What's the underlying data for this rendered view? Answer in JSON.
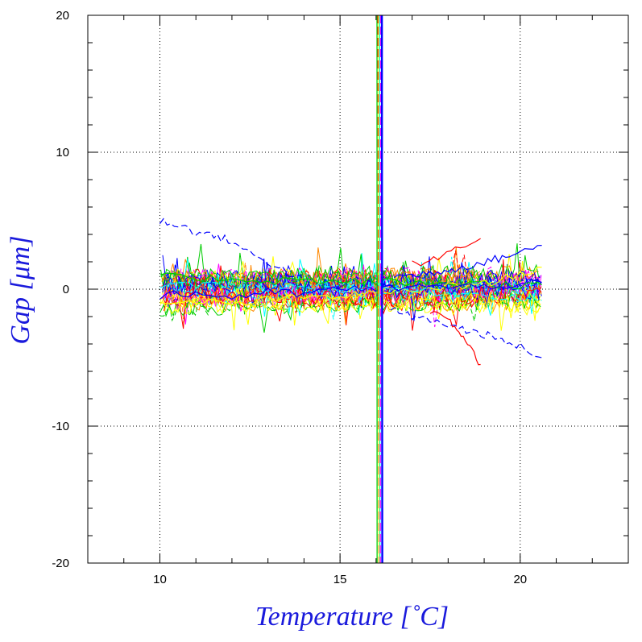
{
  "chart_data": {
    "type": "line",
    "title": "",
    "xlabel": "Temperature [˚C]",
    "ylabel": "Gap [μm]",
    "xlim": [
      8,
      23
    ],
    "ylim": [
      -20,
      20
    ],
    "x_ticks": [
      10,
      15,
      20
    ],
    "y_ticks": [
      -20,
      -10,
      0,
      10,
      20
    ],
    "x_ticks_labels": [
      "10",
      "15",
      "20"
    ],
    "y_ticks_labels": [
      "-20",
      "-10",
      "0",
      "10",
      "20"
    ],
    "x_minor_step": 1,
    "y_minor_step": 2,
    "grid": true,
    "grid_style": "dotted",
    "series_count": 48,
    "series_colors": [
      "#0000ff",
      "#ff0000",
      "#00cc00",
      "#ffff00",
      "#00ffff",
      "#ff00ff",
      "#ff8800"
    ],
    "series": [
      {
        "color": "#0000ff",
        "style": "dashed",
        "x": [
          10.0,
          10.5,
          11.0,
          11.5,
          12.0,
          12.5,
          13.0,
          13.5,
          14.0
        ],
        "y": [
          5.0,
          4.7,
          4.2,
          3.9,
          3.5,
          2.6,
          2.0,
          1.3,
          0.6
        ]
      },
      {
        "color": "#0000ff",
        "style": "dashed",
        "x": [
          16.4,
          17.0,
          17.5,
          18.0,
          18.5,
          19.0,
          19.5,
          20.0,
          20.6
        ],
        "y": [
          -1.5,
          -2.0,
          -2.3,
          -2.6,
          -3.0,
          -3.3,
          -3.8,
          -4.2,
          -5.0
        ]
      },
      {
        "color": "#0000ff",
        "style": "solid",
        "x": [
          16.5,
          17.0,
          17.5,
          18.0,
          18.5,
          19.0,
          19.5,
          20.0,
          20.6
        ],
        "y": [
          0.9,
          1.0,
          1.2,
          1.4,
          1.7,
          2.0,
          2.3,
          2.7,
          3.2
        ]
      },
      {
        "color": "#ff0000",
        "style": "solid",
        "x": [
          17.5,
          18.0,
          18.3,
          18.6,
          18.9
        ],
        "y": [
          -1.5,
          -2.2,
          -3.0,
          -4.1,
          -5.5
        ]
      },
      {
        "color": "#ff0000",
        "style": "solid",
        "x": [
          17.0,
          17.6,
          18.2,
          18.9
        ],
        "y": [
          1.8,
          2.1,
          2.8,
          3.7
        ]
      },
      {
        "color": "#00cc00",
        "style": "solid",
        "x": [
          10.0,
          11.0,
          12.0,
          13.0,
          14.0,
          15.0,
          16.0,
          17.0,
          18.0,
          19.0,
          20.0,
          20.6
        ],
        "y": [
          0.9,
          0.8,
          0.8,
          0.6,
          0.7,
          0.5,
          0.6,
          0.4,
          0.5,
          0.4,
          0.3,
          0.3
        ]
      },
      {
        "color": "#ffff00",
        "style": "solid",
        "x": [
          10.0,
          11.0,
          12.0,
          13.0,
          14.0,
          15.0,
          16.0,
          17.0,
          18.0,
          19.0,
          20.0,
          20.6
        ],
        "y": [
          -1.2,
          -0.9,
          -1.1,
          -0.8,
          -0.6,
          -0.5,
          -0.3,
          -0.1,
          0.2,
          0.4,
          1.1,
          1.6
        ]
      },
      {
        "color": "#00ffff",
        "style": "dashed",
        "x": [
          10.0,
          11.0,
          12.0,
          13.0,
          14.0,
          15.0,
          16.0,
          17.0,
          18.0,
          19.0,
          20.0,
          20.6
        ],
        "y": [
          0.3,
          0.2,
          0.4,
          0.1,
          0.3,
          0.0,
          0.2,
          -0.1,
          -0.3,
          -0.4,
          -0.6,
          -0.8
        ]
      },
      {
        "color": "#0000ff",
        "style": "solid",
        "x": [
          10.0,
          11.0,
          12.0,
          13.0,
          14.0,
          15.0,
          16.0,
          17.0,
          18.0,
          19.0,
          20.0,
          20.6
        ],
        "y": [
          -0.5,
          -0.3,
          -0.6,
          -0.2,
          -0.4,
          0.1,
          -0.1,
          0.3,
          0.1,
          0.2,
          0.4,
          0.5
        ]
      }
    ],
    "vertical_spike": {
      "x": 16.1,
      "y_range": [
        -20,
        20
      ]
    }
  }
}
